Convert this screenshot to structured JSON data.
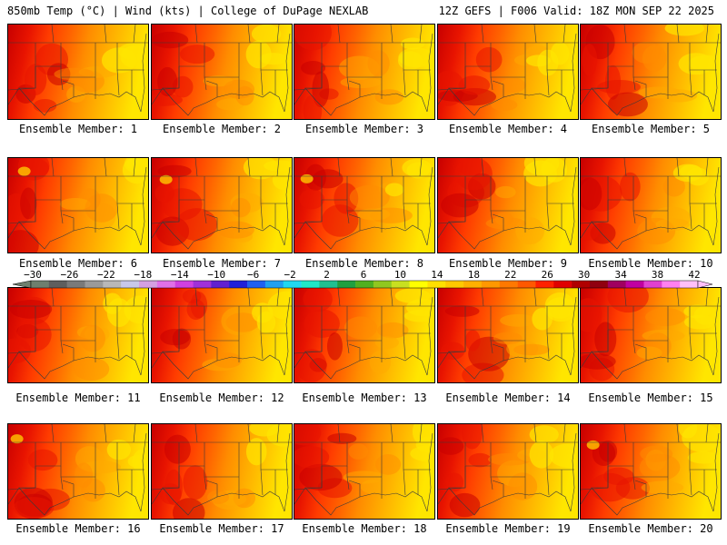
{
  "header": {
    "left": "850mb Temp (°C) | Wind (kts) | College of DuPage NEXLAB",
    "right": "12Z GEFS | F006 Valid: 18Z MON SEP 22 2025"
  },
  "members": [
    {
      "label": "Ensemble Member: 1",
      "value": 1
    },
    {
      "label": "Ensemble Member: 2",
      "value": 2
    },
    {
      "label": "Ensemble Member: 3",
      "value": 3
    },
    {
      "label": "Ensemble Member: 4",
      "value": 4
    },
    {
      "label": "Ensemble Member: 5",
      "value": 5
    },
    {
      "label": "Ensemble Member: 6",
      "value": 6
    },
    {
      "label": "Ensemble Member: 7",
      "value": 7
    },
    {
      "label": "Ensemble Member: 8",
      "value": 8
    },
    {
      "label": "Ensemble Member: 9",
      "value": 9
    },
    {
      "label": "Ensemble Member: 10",
      "value": 10
    },
    {
      "label": "Ensemble Member: 11",
      "value": 11
    },
    {
      "label": "Ensemble Member: 12",
      "value": 12
    },
    {
      "label": "Ensemble Member: 13",
      "value": 13
    },
    {
      "label": "Ensemble Member: 14",
      "value": 14
    },
    {
      "label": "Ensemble Member: 15",
      "value": 15
    },
    {
      "label": "Ensemble Member: 16",
      "value": 16
    },
    {
      "label": "Ensemble Member: 17",
      "value": 17
    },
    {
      "label": "Ensemble Member: 18",
      "value": 18
    },
    {
      "label": "Ensemble Member: 19",
      "value": 19
    },
    {
      "label": "Ensemble Member: 20",
      "value": 20
    }
  ],
  "colorbar": {
    "tick_labels": [
      "-30",
      "-26",
      "-22",
      "-18",
      "-14",
      "-10",
      "-6",
      "-2",
      "2",
      "6",
      "10",
      "14",
      "18",
      "22",
      "26",
      "30",
      "34",
      "38",
      "42"
    ],
    "colors": [
      "#6e7f6e",
      "#5e5e5e",
      "#7a7a7a",
      "#9a9a9a",
      "#b8b8b8",
      "#c8c8e8",
      "#d4a0e0",
      "#e070e8",
      "#d040e0",
      "#a030d8",
      "#6020d0",
      "#2020d8",
      "#2060f0",
      "#20a0f0",
      "#20d8f0",
      "#20e8c8",
      "#20c090",
      "#20a040",
      "#50b020",
      "#90c820",
      "#c8e020",
      "#ffff00",
      "#ffe000",
      "#ffc800",
      "#ffb000",
      "#ff9800",
      "#ff7800",
      "#ff5800",
      "#ff2000",
      "#e00000",
      "#b00000",
      "#900010",
      "#a00060",
      "#c000a0",
      "#e040d0",
      "#ff80f0",
      "#ffc0f8"
    ]
  },
  "palette": {
    "deep_red": "#c80000",
    "red": "#e81400",
    "red_orange": "#ff3c00",
    "orange_red": "#ff6400",
    "orange": "#ff8c00",
    "amber": "#ffaa00",
    "gold": "#ffc800",
    "yellow": "#ffe600",
    "boundary": "#3a3a3a"
  }
}
